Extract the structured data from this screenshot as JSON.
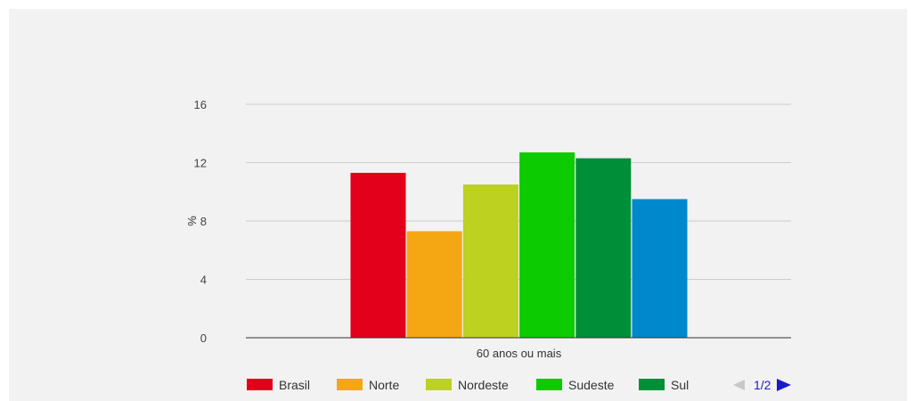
{
  "chart_data": {
    "type": "bar",
    "title": "",
    "xlabel": "",
    "ylabel": "%",
    "categories": [
      "60 anos ou mais"
    ],
    "ylim": [
      0,
      16
    ],
    "yticks": [
      0,
      4,
      8,
      12,
      16
    ],
    "grid": true,
    "legend_position": "bottom",
    "series": [
      {
        "name": "Brasil",
        "values": [
          11.3
        ],
        "color": "#e2001a"
      },
      {
        "name": "Norte",
        "values": [
          7.3
        ],
        "color": "#f4a712"
      },
      {
        "name": "Nordeste",
        "values": [
          10.5
        ],
        "color": "#bcd120"
      },
      {
        "name": "Sudeste",
        "values": [
          12.7
        ],
        "color": "#0ccb00"
      },
      {
        "name": "Sul",
        "values": [
          12.3
        ],
        "color": "#008f39"
      },
      {
        "name": "",
        "values": [
          9.5
        ],
        "color": "#0088cc"
      }
    ]
  },
  "legend": {
    "page_label": "1/2",
    "visible_count": 5
  }
}
